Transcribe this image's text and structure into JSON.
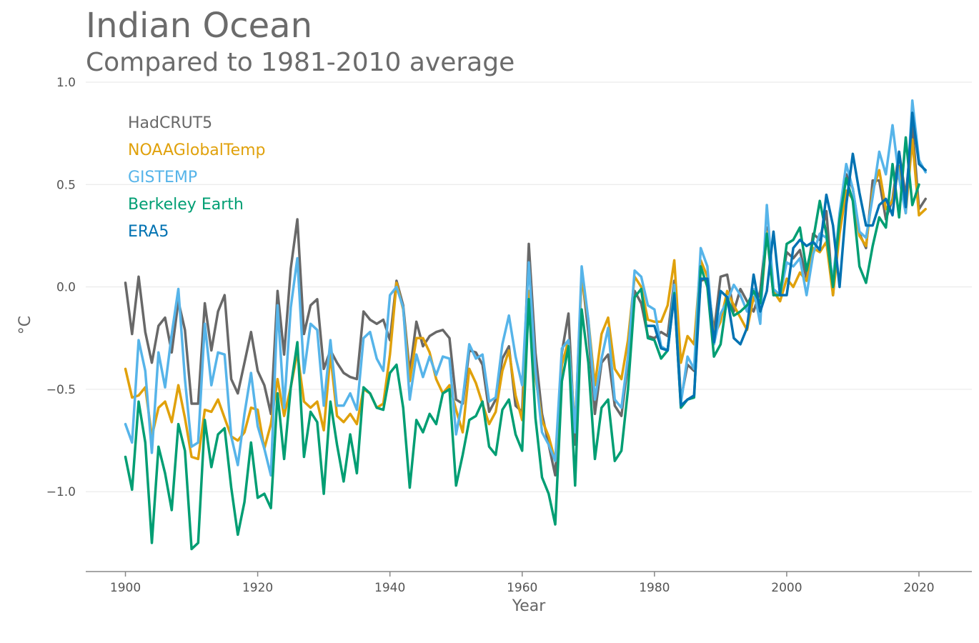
{
  "chart_data": {
    "type": "line",
    "title": "Indian Ocean",
    "subtitle": "Compared to 1981-2010 average",
    "xlabel": "Year",
    "ylabel": "°C",
    "xlim": [
      1894,
      2028
    ],
    "ylim": [
      -1.39,
      1.0
    ],
    "xticks": [
      1900,
      1920,
      1940,
      1960,
      1980,
      2000,
      2020
    ],
    "yticks": [
      1.0,
      0.5,
      0.0,
      -0.5,
      -1.0
    ],
    "ytick_labels": [
      "1.0",
      "0.5",
      "0.0",
      "−0.5",
      "−1.0"
    ],
    "grid": "horizontal",
    "legend": "top-left",
    "series": [
      {
        "name": "HadCRUT5",
        "color": "#686868",
        "start_year": 1900,
        "values": [
          0.02,
          -0.23,
          0.05,
          -0.22,
          -0.37,
          -0.19,
          -0.15,
          -0.32,
          -0.07,
          -0.21,
          -0.57,
          -0.57,
          -0.08,
          -0.31,
          -0.12,
          -0.04,
          -0.45,
          -0.52,
          -0.37,
          -0.22,
          -0.41,
          -0.48,
          -0.62,
          -0.02,
          -0.33,
          0.09,
          0.33,
          -0.23,
          -0.09,
          -0.06,
          -0.4,
          -0.31,
          -0.37,
          -0.42,
          -0.44,
          -0.45,
          -0.12,
          -0.16,
          -0.18,
          -0.16,
          -0.26,
          0.03,
          -0.09,
          -0.42,
          -0.17,
          -0.29,
          -0.24,
          -0.22,
          -0.21,
          -0.25,
          -0.55,
          -0.57,
          -0.31,
          -0.32,
          -0.38,
          -0.61,
          -0.55,
          -0.35,
          -0.29,
          -0.58,
          -0.61,
          0.21,
          -0.32,
          -0.62,
          -0.77,
          -0.92,
          -0.32,
          -0.13,
          -0.77,
          0.07,
          -0.22,
          -0.62,
          -0.37,
          -0.33,
          -0.58,
          -0.63,
          -0.37,
          -0.02,
          -0.08,
          -0.24,
          -0.25,
          -0.22,
          -0.24,
          0.03,
          -0.55,
          -0.38,
          -0.41,
          0.03,
          0.04,
          -0.22,
          0.05,
          0.06,
          -0.12,
          -0.01,
          -0.07,
          -0.12,
          -0.02,
          0.29,
          -0.04,
          -0.03,
          0.17,
          0.14,
          0.18,
          0.04,
          0.26,
          0.23,
          0.37,
          -0.04,
          0.34,
          0.55,
          0.48,
          0.26,
          0.19,
          0.52,
          0.52,
          0.33,
          0.43,
          0.66,
          0.44,
          0.79,
          0.38,
          0.43
        ]
      },
      {
        "name": "NOAAGlobalTemp",
        "color": "#e0a10b",
        "start_year": 1900,
        "values": [
          -0.4,
          -0.54,
          -0.53,
          -0.49,
          -0.73,
          -0.59,
          -0.56,
          -0.66,
          -0.48,
          -0.64,
          -0.83,
          -0.84,
          -0.6,
          -0.61,
          -0.55,
          -0.64,
          -0.73,
          -0.75,
          -0.71,
          -0.59,
          -0.6,
          -0.79,
          -0.67,
          -0.45,
          -0.63,
          -0.49,
          -0.32,
          -0.56,
          -0.59,
          -0.56,
          -0.7,
          -0.33,
          -0.63,
          -0.66,
          -0.62,
          -0.67,
          -0.5,
          -0.52,
          -0.59,
          -0.57,
          -0.33,
          0.02,
          -0.11,
          -0.46,
          -0.25,
          -0.25,
          -0.32,
          -0.45,
          -0.52,
          -0.48,
          -0.6,
          -0.71,
          -0.4,
          -0.47,
          -0.57,
          -0.67,
          -0.61,
          -0.41,
          -0.31,
          -0.53,
          -0.65,
          -0.02,
          -0.44,
          -0.65,
          -0.73,
          -0.85,
          -0.38,
          -0.26,
          -0.69,
          0.05,
          -0.16,
          -0.48,
          -0.23,
          -0.15,
          -0.4,
          -0.45,
          -0.26,
          0.05,
          0.0,
          -0.16,
          -0.17,
          -0.17,
          -0.09,
          0.13,
          -0.37,
          -0.24,
          -0.28,
          0.13,
          0.05,
          -0.24,
          -0.17,
          -0.02,
          -0.09,
          -0.15,
          -0.21,
          -0.05,
          -0.12,
          0.27,
          -0.02,
          -0.07,
          0.04,
          0.0,
          0.07,
          0.03,
          0.19,
          0.17,
          0.22,
          -0.04,
          0.26,
          0.47,
          0.43,
          0.25,
          0.2,
          0.47,
          0.57,
          0.38,
          0.42,
          0.59,
          0.36,
          0.72,
          0.35,
          0.38
        ]
      },
      {
        "name": "GISTEMP",
        "color": "#56b4e9",
        "start_year": 1900,
        "values": [
          -0.67,
          -0.76,
          -0.26,
          -0.41,
          -0.81,
          -0.32,
          -0.49,
          -0.23,
          -0.01,
          -0.45,
          -0.78,
          -0.76,
          -0.18,
          -0.48,
          -0.32,
          -0.33,
          -0.73,
          -0.87,
          -0.62,
          -0.42,
          -0.68,
          -0.79,
          -0.92,
          -0.09,
          -0.59,
          -0.1,
          0.14,
          -0.42,
          -0.18,
          -0.21,
          -0.58,
          -0.26,
          -0.58,
          -0.58,
          -0.52,
          -0.6,
          -0.25,
          -0.22,
          -0.35,
          -0.41,
          -0.04,
          0.0,
          -0.1,
          -0.55,
          -0.33,
          -0.44,
          -0.34,
          -0.43,
          -0.34,
          -0.35,
          -0.72,
          -0.55,
          -0.28,
          -0.35,
          -0.33,
          -0.56,
          -0.54,
          -0.28,
          -0.14,
          -0.34,
          -0.48,
          0.12,
          -0.41,
          -0.71,
          -0.77,
          -0.85,
          -0.3,
          -0.26,
          -0.71,
          0.1,
          -0.16,
          -0.55,
          -0.35,
          -0.2,
          -0.55,
          -0.59,
          -0.34,
          0.08,
          0.05,
          -0.09,
          -0.11,
          -0.29,
          -0.31,
          0.01,
          -0.57,
          -0.34,
          -0.4,
          0.19,
          0.1,
          -0.28,
          -0.13,
          -0.07,
          0.01,
          -0.04,
          -0.12,
          -0.01,
          -0.18,
          0.4,
          -0.01,
          -0.04,
          0.12,
          0.1,
          0.14,
          -0.04,
          0.16,
          0.26,
          0.24,
          0.03,
          0.36,
          0.6,
          0.48,
          0.27,
          0.24,
          0.44,
          0.66,
          0.55,
          0.79,
          0.53,
          0.36,
          0.91,
          0.62,
          0.56
        ]
      },
      {
        "name": "Berkeley Earth",
        "color": "#009e73",
        "start_year": 1900,
        "values": [
          -0.83,
          -0.99,
          -0.56,
          -0.76,
          -1.25,
          -0.78,
          -0.91,
          -1.09,
          -0.67,
          -0.8,
          -1.28,
          -1.25,
          -0.65,
          -0.88,
          -0.72,
          -0.69,
          -0.98,
          -1.21,
          -1.05,
          -0.76,
          -1.03,
          -1.01,
          -1.08,
          -0.52,
          -0.84,
          -0.49,
          -0.27,
          -0.83,
          -0.61,
          -0.66,
          -1.01,
          -0.56,
          -0.77,
          -0.95,
          -0.72,
          -0.91,
          -0.49,
          -0.52,
          -0.59,
          -0.6,
          -0.42,
          -0.38,
          -0.59,
          -0.98,
          -0.65,
          -0.71,
          -0.62,
          -0.67,
          -0.52,
          -0.5,
          -0.97,
          -0.82,
          -0.65,
          -0.63,
          -0.56,
          -0.78,
          -0.82,
          -0.6,
          -0.55,
          -0.72,
          -0.8,
          -0.06,
          -0.64,
          -0.93,
          -1.01,
          -1.16,
          -0.46,
          -0.29,
          -0.97,
          -0.11,
          -0.37,
          -0.84,
          -0.59,
          -0.55,
          -0.85,
          -0.8,
          -0.5,
          -0.05,
          -0.01,
          -0.25,
          -0.26,
          -0.35,
          -0.31,
          -0.03,
          -0.59,
          -0.55,
          -0.54,
          0.1,
          0.0,
          -0.34,
          -0.28,
          -0.05,
          -0.14,
          -0.12,
          -0.09,
          -0.02,
          -0.08,
          0.26,
          -0.04,
          -0.04,
          0.21,
          0.23,
          0.29,
          0.08,
          0.23,
          0.42,
          0.26,
          0.0,
          0.33,
          0.53,
          0.42,
          0.1,
          0.02,
          0.2,
          0.34,
          0.29,
          0.6,
          0.34,
          0.73,
          0.4,
          0.5
        ]
      },
      {
        "name": "ERA5",
        "color": "#0072b2",
        "start_year": 1979,
        "values": [
          -0.19,
          -0.19,
          -0.3,
          -0.31,
          -0.04,
          -0.58,
          -0.55,
          -0.53,
          0.04,
          0.04,
          -0.27,
          -0.02,
          -0.05,
          -0.25,
          -0.28,
          -0.2,
          0.06,
          -0.12,
          -0.02,
          0.27,
          -0.04,
          -0.04,
          0.19,
          0.23,
          0.2,
          0.22,
          0.18,
          0.45,
          0.3,
          0.0,
          0.4,
          0.65,
          0.46,
          0.3,
          0.3,
          0.4,
          0.43,
          0.35,
          0.66,
          0.39,
          0.85,
          0.6,
          0.57
        ]
      }
    ]
  }
}
